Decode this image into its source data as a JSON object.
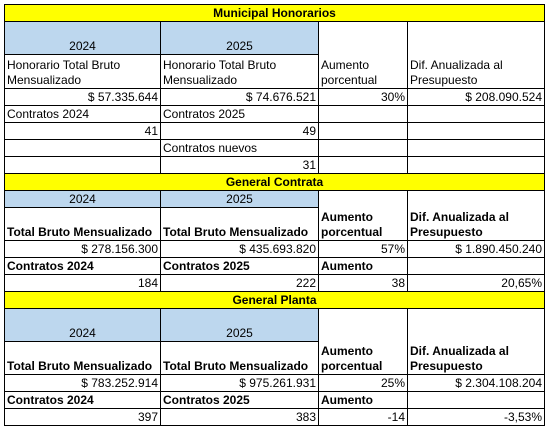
{
  "municipal": {
    "title": "Municipal Honorarios",
    "year_a": "2024",
    "year_b": "2025",
    "col_a": "Honorario Total Bruto Mensualizado",
    "col_b": "Honorario Total Bruto Mensualizado",
    "col_c": "Aumento porcentual",
    "col_d": "Dif. Anualizada al Presupuesto",
    "val_a": "$ 57.335.644",
    "val_b": "$ 74.676.521",
    "val_c": "30%",
    "val_d": "$ 208.090.524",
    "contracts_a_label": "Contratos 2024",
    "contracts_b_label": "Contratos 2025",
    "contracts_a": "41",
    "contracts_b": "49",
    "new_label": "Contratos nuevos",
    "new_value": "31"
  },
  "contrata": {
    "title": "General Contrata",
    "year_a": "2024",
    "year_b": "2025",
    "col_a": "Total Bruto Mensualizado",
    "col_b": "Total Bruto Mensualizado",
    "col_c": "Aumento porcentual",
    "col_d": "Dif. Anualizada al Presupuesto",
    "val_a": "$ 278.156.300",
    "val_b": "$ 435.693.820",
    "val_c": "57%",
    "val_d": "$ 1.890.450.240",
    "contracts_a_label": "Contratos 2024",
    "contracts_b_label": "Contratos 2025",
    "aumento_label": "Aumento",
    "contracts_a": "184",
    "contracts_b": "222",
    "aumento_value": "38",
    "pct_value": "20,65%"
  },
  "planta": {
    "title": "General Planta",
    "year_a": "2024",
    "year_b": "2025",
    "col_a": "Total Bruto Mensualizado",
    "col_b": "Total Bruto Mensualizado",
    "col_c": "Aumento porcentual",
    "col_d": "Dif. Anualizada al Presupuesto",
    "val_a": "$ 783.252.914",
    "val_b": "$ 975.261.931",
    "val_c": "25%",
    "val_d": "$ 2.304.108.204",
    "contracts_a_label": "Contratos 2024",
    "contracts_b_label": "Contratos 2025",
    "aumento_label": "Aumento",
    "contracts_a": "397",
    "contracts_b": "383",
    "aumento_value": "-14",
    "pct_value": "-3,53%"
  }
}
